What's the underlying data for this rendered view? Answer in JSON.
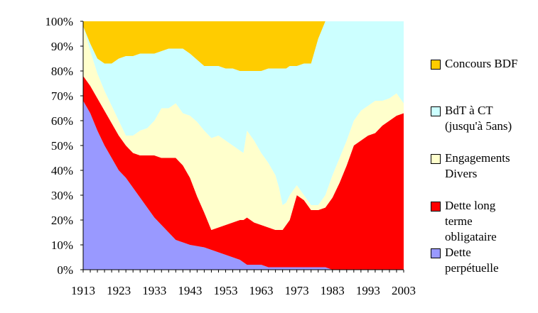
{
  "chart_data": {
    "type": "area",
    "stacked": true,
    "title": "",
    "xlabel": "",
    "ylabel": "",
    "xlim": [
      1913,
      2003
    ],
    "ylim": [
      0,
      100
    ],
    "y_ticks": [
      "0%",
      "10%",
      "20%",
      "30%",
      "40%",
      "50%",
      "60%",
      "70%",
      "80%",
      "90%",
      "100%"
    ],
    "x_ticks": [
      "1913",
      "1923",
      "1933",
      "1943",
      "1953",
      "1963",
      "1973",
      "1983",
      "1993",
      "2003"
    ],
    "x_tick_values": [
      1913,
      1923,
      1933,
      1943,
      1953,
      1963,
      1973,
      1983,
      1993,
      2003
    ],
    "x": [
      1913,
      1915,
      1917,
      1919,
      1921,
      1923,
      1925,
      1927,
      1929,
      1931,
      1933,
      1935,
      1937,
      1939,
      1941,
      1943,
      1945,
      1947,
      1949,
      1951,
      1953,
      1955,
      1957,
      1958,
      1959,
      1961,
      1963,
      1965,
      1967,
      1968,
      1969,
      1970,
      1971,
      1973,
      1975,
      1977,
      1979,
      1981,
      1983,
      1985,
      1987,
      1989,
      1991,
      1993,
      1995,
      1997,
      1999,
      2001,
      2003
    ],
    "series": [
      {
        "name": "Dette perpétuelle",
        "color": "#9999ff",
        "values": [
          68,
          63,
          56,
          50,
          45,
          40,
          37,
          33,
          29,
          25,
          21,
          18,
          15,
          12,
          11,
          10,
          9.5,
          9,
          8,
          7,
          6,
          5,
          4,
          3,
          2,
          2,
          2,
          1,
          1,
          1,
          1,
          1,
          1,
          1,
          1,
          1,
          1,
          1,
          0,
          0,
          0,
          0,
          0,
          0,
          0,
          0,
          0,
          0,
          0
        ]
      },
      {
        "name": "Dette long terme obligataire",
        "color": "#ff0000",
        "values": [
          10,
          11,
          13,
          14,
          14,
          14,
          13,
          14,
          17,
          21,
          25,
          27,
          30,
          33,
          31,
          27,
          20,
          14,
          8,
          10,
          12,
          14,
          16,
          17,
          19,
          17,
          16,
          16,
          15,
          15,
          15,
          17,
          19,
          29,
          27,
          23,
          23,
          24,
          29,
          35,
          42,
          50,
          52,
          54,
          55,
          58,
          60,
          62,
          63
        ]
      },
      {
        "name": "Engagements Divers",
        "color": "#ffffcc",
        "values": [
          20,
          14,
          10,
          8,
          7,
          6,
          4,
          7,
          10,
          11,
          14,
          20,
          20,
          22,
          21,
          25,
          30,
          33,
          37,
          37,
          34,
          31,
          28,
          27,
          35,
          33,
          29,
          26,
          22,
          17,
          10,
          9,
          10,
          4,
          2,
          2,
          2,
          5,
          9,
          10,
          10,
          10,
          12,
          12,
          13,
          10,
          9,
          9,
          4
        ]
      },
      {
        "name": "BdT à CT\n(jusqu'à 5ans)",
        "color": "#ccffff",
        "values": [
          0,
          3,
          6,
          11,
          17,
          25,
          32,
          32,
          31,
          30,
          27,
          23,
          24,
          22,
          26,
          25,
          25,
          26,
          29,
          28,
          29,
          31,
          32,
          33,
          24,
          28,
          33,
          38,
          43,
          48,
          55,
          54,
          52,
          48,
          53,
          57,
          67,
          70,
          62,
          55,
          48,
          40,
          36,
          34,
          32,
          32,
          31,
          29,
          33
        ]
      },
      {
        "name": "Concours BDF",
        "color": "#ffcc00",
        "values": [
          2,
          9,
          15,
          17,
          17,
          15,
          14,
          14,
          13,
          13,
          13,
          12,
          11,
          11,
          11,
          13,
          15.5,
          18,
          18,
          18,
          19,
          19,
          20,
          20,
          20,
          20,
          20,
          19,
          19,
          19,
          19,
          19,
          18,
          18,
          17,
          17,
          7,
          0,
          0,
          0,
          0,
          0,
          0,
          0,
          0,
          0,
          0,
          0,
          0
        ]
      }
    ],
    "legend": {
      "position": "right",
      "order": [
        "Concours BDF",
        "BdT à CT\n(jusqu'à 5ans)",
        "Engagements\nDivers",
        "Dette long\nterme\nobligataire",
        "Dette\nperpétuelle"
      ],
      "colors": [
        "#ffcc00",
        "#ccffff",
        "#ffffcc",
        "#ff0000",
        "#9999ff"
      ]
    },
    "grid": false
  }
}
